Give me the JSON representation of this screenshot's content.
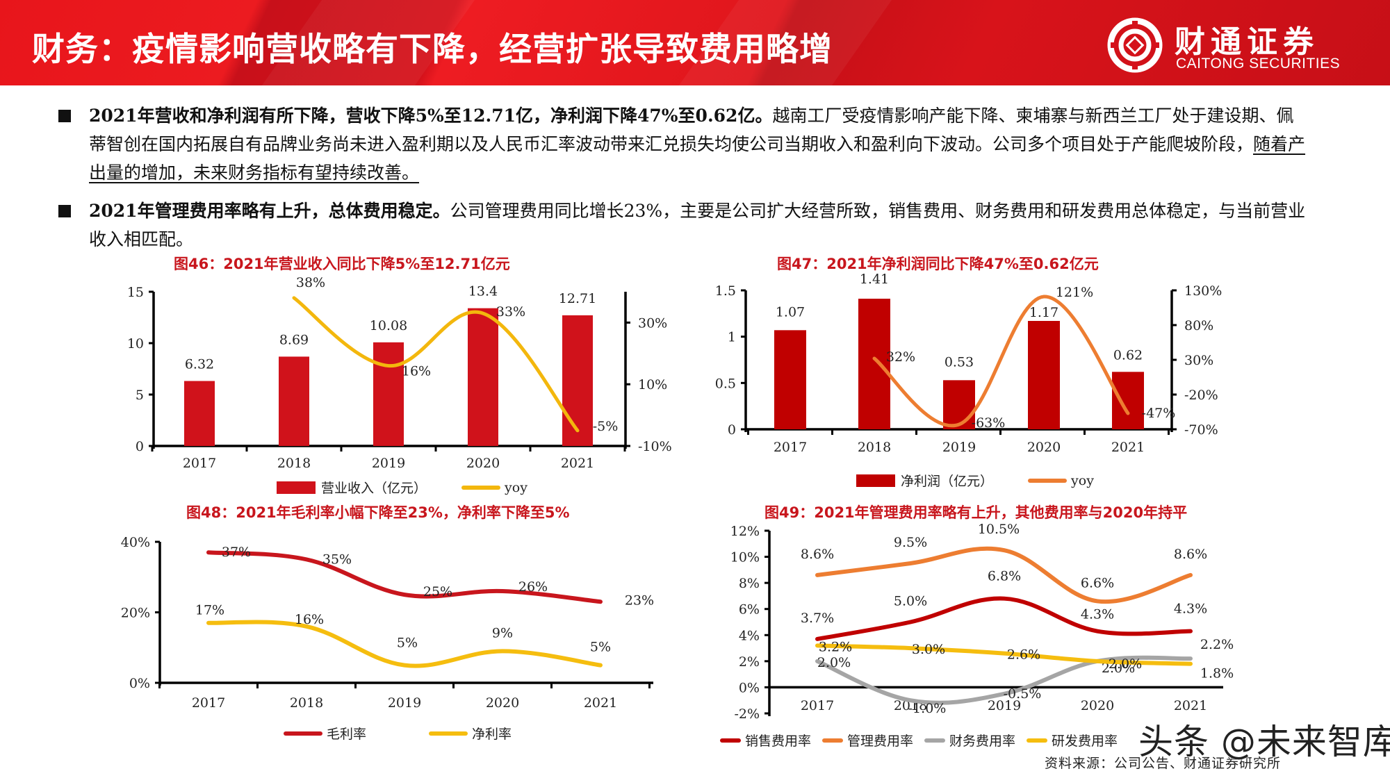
{
  "header": {
    "title": "财务：疫情影响营收略有下降，经营扩张导致费用略增",
    "logo": {
      "cn": "财通证券",
      "en": "CAITONG SECURITIES",
      "icon": "caitong-logo-icon"
    }
  },
  "bullets": [
    {
      "bold": "2021年营收和净利润有所下降，营收下降5%至12.71亿，净利润下降47%至0.62亿。",
      "text": "越南工厂受疫情影响产能下降、柬埔寨与新西兰工厂处于建设期、佩蒂智创在国内拓展自有品牌业务尚未进入盈利期以及人民币汇率波动带来汇兑损失均使公司当期收入和盈利向下波动。公司多个项目处于产能爬坡阶段，",
      "underlined": "随着产出量的增加，未来财务指标有望持续改善。"
    },
    {
      "bold": "2021年管理费用率略有上升，总体费用稳定。",
      "text": "公司管理费用同比增长23%，主要是公司扩大经营所致，销售费用、财务费用和研发费用总体稳定，与当前营业收入相匹配。",
      "underlined": ""
    }
  ],
  "chart_data": [
    {
      "id": "fig46",
      "type": "bar",
      "title": "图46：2021年营业收入同比下降5%至12.71亿元",
      "categories": [
        "2017",
        "2018",
        "2019",
        "2020",
        "2021"
      ],
      "ylim": [
        0,
        15
      ],
      "yticks": [
        "0",
        "5",
        "10",
        "15"
      ],
      "ytick_values": [
        0,
        5,
        10,
        15
      ],
      "y2lim": [
        -10,
        40
      ],
      "y2ticks": [
        "-10%",
        "10%",
        "30%"
      ],
      "y2tick_values": [
        -10,
        10,
        30
      ],
      "series": [
        {
          "name": "营业收入（亿元）",
          "type": "bar",
          "axis": "left",
          "color": "#d0121b",
          "values": [
            6.32,
            8.69,
            10.08,
            13.4,
            12.71
          ],
          "labels": [
            "6.32",
            "8.69",
            "10.08",
            "13.4",
            "12.71"
          ]
        },
        {
          "name": "yoy",
          "type": "line",
          "axis": "right",
          "color": "#f3b70d",
          "values": [
            null,
            38,
            16,
            33,
            -5
          ],
          "labels": [
            "",
            "38%",
            "16%",
            "33%",
            "-5%"
          ]
        }
      ],
      "legend": [
        "营业收入（亿元）",
        "yoy"
      ]
    },
    {
      "id": "fig47",
      "type": "bar",
      "title": "图47：2021年净利润同比下降47%至0.62亿元",
      "categories": [
        "2017",
        "2018",
        "2019",
        "2020",
        "2021"
      ],
      "ylim": [
        0,
        1.5
      ],
      "yticks": [
        "0",
        "0.5",
        "1",
        "1.5"
      ],
      "ytick_values": [
        0,
        0.5,
        1,
        1.5
      ],
      "y2lim": [
        -70,
        130
      ],
      "y2ticks": [
        "-70%",
        "-20%",
        "30%",
        "80%",
        "130%"
      ],
      "y2tick_values": [
        -70,
        -20,
        30,
        80,
        130
      ],
      "series": [
        {
          "name": "净利润（亿元）",
          "type": "bar",
          "axis": "left",
          "color": "#c00000",
          "values": [
            1.07,
            1.41,
            0.53,
            1.17,
            0.62
          ],
          "labels": [
            "1.07",
            "1.41",
            "0.53",
            "1.17",
            "0.62"
          ]
        },
        {
          "name": "yoy",
          "type": "line",
          "axis": "right",
          "color": "#ed7d31",
          "values": [
            null,
            32,
            -63,
            121,
            -47
          ],
          "labels": [
            "",
            "32%",
            "-63%",
            "121%",
            "-47%"
          ]
        }
      ],
      "legend": [
        "净利润（亿元）",
        "yoy"
      ]
    },
    {
      "id": "fig48",
      "type": "line",
      "title": "图48：2021年毛利率小幅下降至23%，净利率下降至5%",
      "categories": [
        "2017",
        "2018",
        "2019",
        "2020",
        "2021"
      ],
      "ylim": [
        0,
        40
      ],
      "yticks": [
        "0%",
        "20%",
        "40%"
      ],
      "ytick_values": [
        0,
        20,
        40
      ],
      "series": [
        {
          "name": "毛利率",
          "color": "#c8161d",
          "values": [
            37,
            35,
            25,
            26,
            23
          ],
          "labels": [
            "37%",
            "35%",
            "25%",
            "26%",
            "23%"
          ]
        },
        {
          "name": "净利率",
          "color": "#f5bd0f",
          "values": [
            17,
            16,
            5,
            9,
            5
          ],
          "labels": [
            "17%",
            "16%",
            "5%",
            "9%",
            "5%"
          ]
        }
      ],
      "legend": [
        "毛利率",
        "净利率"
      ]
    },
    {
      "id": "fig49",
      "type": "line",
      "title": "图49：2021年管理费用率略有上升，其他费用率与2020年持平",
      "categories": [
        "2017",
        "2018",
        "2019",
        "2020",
        "2021"
      ],
      "ylim": [
        -2,
        12
      ],
      "yticks": [
        "-2%",
        "0%",
        "2%",
        "4%",
        "6%",
        "8%",
        "10%",
        "12%"
      ],
      "ytick_values": [
        -2,
        0,
        2,
        4,
        6,
        8,
        10,
        12
      ],
      "series": [
        {
          "name": "销售费用率",
          "color": "#c00000",
          "values": [
            3.7,
            5.0,
            6.8,
            4.3,
            4.3
          ],
          "labels": [
            "3.7%",
            "5.0%",
            "6.8%",
            "4.3%",
            "4.3%"
          ]
        },
        {
          "name": "管理费用率",
          "color": "#ed7d31",
          "values": [
            8.6,
            9.5,
            10.5,
            6.6,
            8.6
          ],
          "labels": [
            "8.6%",
            "9.5%",
            "10.5%",
            "6.6%",
            "8.6%"
          ]
        },
        {
          "name": "财务费用率",
          "color": "#a5a5a5",
          "values": [
            2.0,
            -1.0,
            -0.5,
            2.0,
            2.2
          ],
          "labels": [
            "2.0%",
            "-1.0%",
            "-0.5%",
            "2.0%",
            "2.2%"
          ]
        },
        {
          "name": "研发费用率",
          "color": "#f5bd0f",
          "values": [
            3.2,
            3.0,
            2.6,
            2.0,
            1.8
          ],
          "labels": [
            "3.2%",
            "3.0%",
            "2.6%",
            "2.0%",
            "1.8%"
          ]
        }
      ],
      "legend": [
        "销售费用率",
        "管理费用率",
        "财务费用率",
        "研发费用率"
      ]
    }
  ],
  "footer": {
    "source": "资料来源：公司公告、财通证券研究所",
    "watermark": "头条 @未来智库"
  }
}
